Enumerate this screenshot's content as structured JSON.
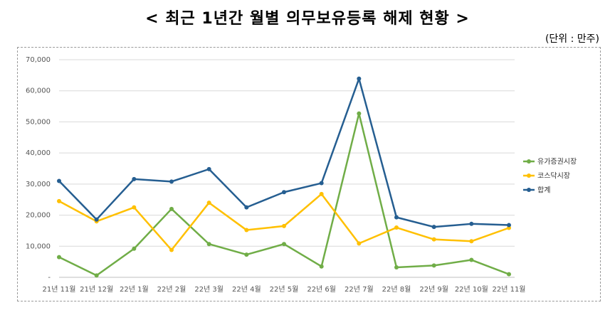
{
  "title": "< 최근 1년간 월별 의무보유등록 해제 현황 >",
  "unit": "(단위 : 만주)",
  "chart_data": {
    "type": "line",
    "title": "< 최근 1년간 월별 의무보유등록 해제 현황 >",
    "xlabel": "",
    "ylabel": "",
    "ylim": [
      0,
      70000
    ],
    "yticks": [
      "-",
      "10,000",
      "20,000",
      "30,000",
      "40,000",
      "50,000",
      "60,000",
      "70,000"
    ],
    "categories": [
      "21년 11월",
      "21년 12월",
      "22년 1월",
      "22년 2월",
      "22년 3월",
      "22년 4월",
      "22년 5월",
      "22년 6월",
      "22년 7월",
      "22년 8월",
      "22년 9월",
      "22년 10월",
      "22년 11월"
    ],
    "grid": true,
    "legend": "right",
    "series": [
      {
        "name": "유가증권시장",
        "color": "#70ad47",
        "values": [
          6500,
          600,
          9200,
          22000,
          10700,
          7300,
          10700,
          3500,
          52700,
          3200,
          3800,
          5600,
          1000
        ]
      },
      {
        "name": "코스닥시장",
        "color": "#ffc000",
        "values": [
          24500,
          18000,
          22500,
          8800,
          24000,
          15200,
          16500,
          26800,
          10900,
          16000,
          12200,
          11600,
          15900
        ]
      },
      {
        "name": "합계",
        "color": "#255e91",
        "values": [
          31000,
          18600,
          31600,
          30800,
          34800,
          22500,
          27400,
          30300,
          63900,
          19300,
          16200,
          17200,
          16800
        ]
      }
    ]
  }
}
